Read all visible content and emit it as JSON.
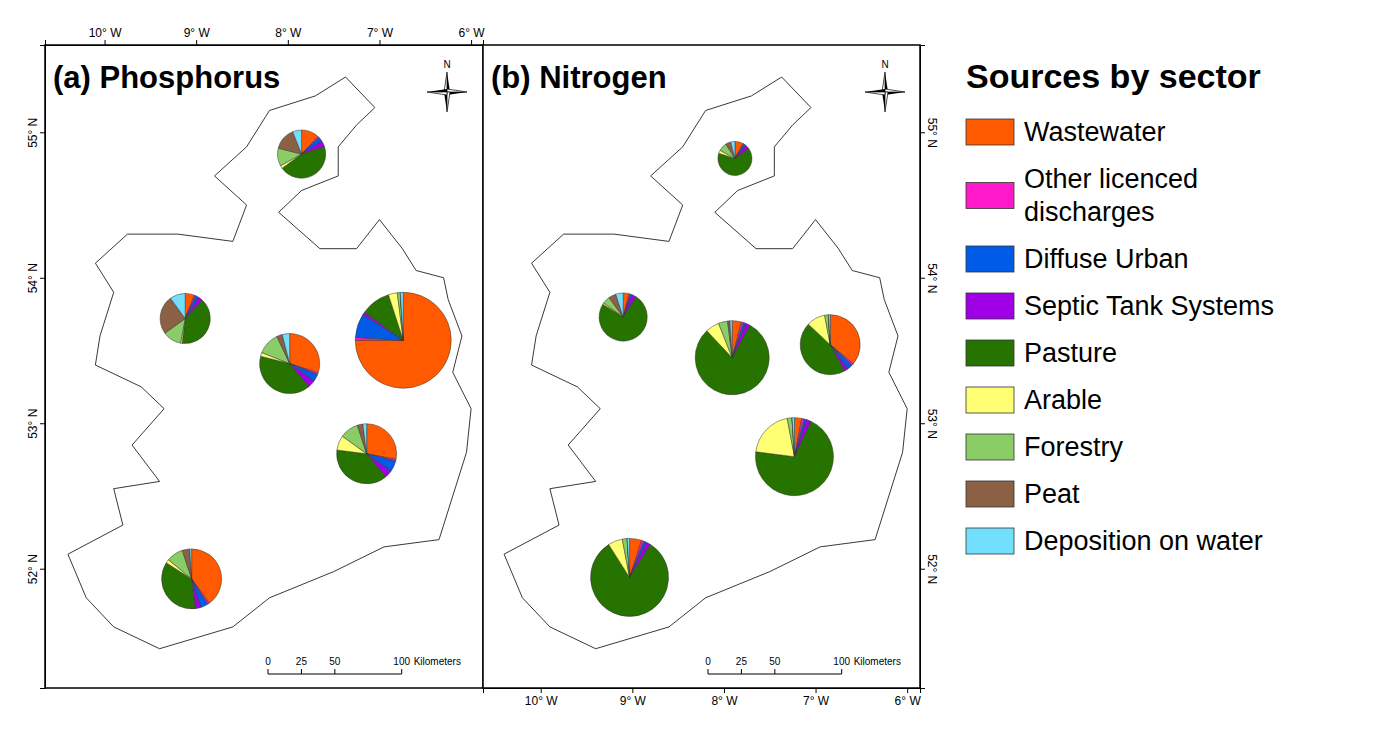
{
  "sectors": {
    "title": "Sources by sector",
    "names": [
      "Wastewater",
      "Other licenced discharges",
      "Diffuse Urban",
      "Septic Tank Systems",
      "Pasture",
      "Arable",
      "Forestry",
      "Peat",
      "Deposition on water"
    ],
    "colors": [
      "#ff5a00",
      "#ff19c8",
      "#005ce6",
      "#a000e6",
      "#267300",
      "#ffff73",
      "#8acd66",
      "#8c6045",
      "#73dfff"
    ]
  },
  "scale_bar": {
    "ticks": [
      0,
      25,
      50,
      100
    ],
    "label": "Kilometers"
  },
  "north_label": "N",
  "chart_data": [
    {
      "type": "pie",
      "title": "(a) Phosphorus",
      "xlim": [
        -10.65,
        -5.87
      ],
      "ylim": [
        51.18,
        55.6
      ],
      "xticks": [
        {
          "value": -10,
          "label": "10° W"
        },
        {
          "value": -9,
          "label": "9° W"
        },
        {
          "value": -8,
          "label": "8° W"
        },
        {
          "value": -7,
          "label": "7° W"
        },
        {
          "value": -6,
          "label": "6° W"
        }
      ],
      "yticks": [
        {
          "value": 52,
          "label": "52° N"
        },
        {
          "value": 53,
          "label": "53° N"
        },
        {
          "value": 54,
          "label": "54° N"
        },
        {
          "value": 55,
          "label": "55° N"
        }
      ],
      "regions": [
        {
          "lon": -7.85,
          "lat": 54.85,
          "size": 5.8,
          "values": [
            12,
            1,
            3,
            4,
            45,
            2,
            12,
            15,
            6
          ]
        },
        {
          "lon": -9.12,
          "lat": 53.72,
          "size": 6.3,
          "values": [
            6,
            1,
            2,
            3,
            40,
            1,
            12,
            25,
            10
          ]
        },
        {
          "lon": -7.98,
          "lat": 53.41,
          "size": 9,
          "values": [
            30,
            1,
            4,
            4,
            40,
            2,
            12,
            3,
            4
          ]
        },
        {
          "lon": -6.74,
          "lat": 53.57,
          "size": 23,
          "values": [
            75,
            1,
            8,
            1,
            10,
            3,
            1,
            0,
            1
          ]
        },
        {
          "lon": -7.14,
          "lat": 52.79,
          "size": 9,
          "values": [
            28,
            1,
            6,
            4,
            38,
            8,
            10,
            3,
            2
          ]
        },
        {
          "lon": -9.05,
          "lat": 51.93,
          "size": 9,
          "values": [
            40,
            1,
            4,
            3,
            36,
            2,
            9,
            4,
            1
          ]
        }
      ]
    },
    {
      "type": "pie",
      "title": "(b) Nitrogen",
      "xlim": [
        -10.63,
        -5.86
      ],
      "ylim": [
        51.18,
        55.6
      ],
      "xticks": [
        {
          "value": -10,
          "label": "10° W"
        },
        {
          "value": -9,
          "label": "9° W"
        },
        {
          "value": -8,
          "label": "8° W"
        },
        {
          "value": -7,
          "label": "7° W"
        },
        {
          "value": -6,
          "label": "6° W"
        }
      ],
      "yticks": [
        {
          "value": 52,
          "label": "52° N"
        },
        {
          "value": 53,
          "label": "53° N"
        },
        {
          "value": 54,
          "label": "54° N"
        },
        {
          "value": 55,
          "label": "55° N"
        }
      ],
      "regions": [
        {
          "lon": -7.88,
          "lat": 54.82,
          "size": 2.9,
          "values": [
            8,
            1,
            2,
            4,
            65,
            3,
            8,
            5,
            4
          ]
        },
        {
          "lon": -9.1,
          "lat": 53.73,
          "size": 5.8,
          "values": [
            4,
            1,
            1,
            3,
            75,
            1,
            5,
            5,
            5
          ]
        },
        {
          "lon": -7.91,
          "lat": 53.45,
          "size": 13.7,
          "values": [
            4,
            1,
            1,
            2,
            80,
            6,
            4,
            1,
            1
          ]
        },
        {
          "lon": -6.84,
          "lat": 53.54,
          "size": 9,
          "values": [
            36,
            1,
            3,
            2,
            45,
            10,
            2,
            0,
            1
          ]
        },
        {
          "lon": -7.23,
          "lat": 52.77,
          "size": 15.2,
          "values": [
            3,
            1,
            1,
            2,
            70,
            20,
            2,
            0,
            1
          ]
        },
        {
          "lon": -9.03,
          "lat": 51.94,
          "size": 15.2,
          "values": [
            5,
            1,
            1,
            2,
            82,
            6,
            2,
            0,
            1
          ]
        }
      ]
    }
  ]
}
